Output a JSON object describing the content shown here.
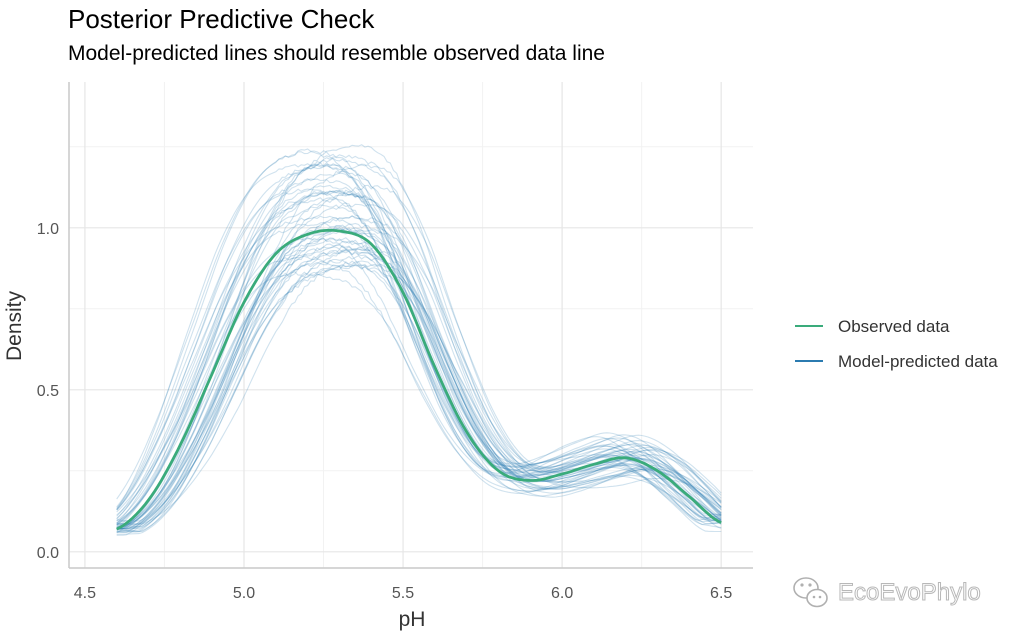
{
  "chart_data": {
    "type": "line",
    "title": "Posterior Predictive Check",
    "subtitle": "Model-predicted lines should resemble observed data line",
    "xlabel": "pH",
    "ylabel": "Density",
    "xlim": [
      4.45,
      6.6
    ],
    "ylim": [
      -0.05,
      1.45
    ],
    "x_ticks": [
      4.5,
      5.0,
      5.5,
      6.0,
      6.5
    ],
    "x_tick_labels": [
      "4.5",
      "5.0",
      "5.5",
      "6.0",
      "6.5"
    ],
    "y_ticks": [
      0.0,
      0.5,
      1.0
    ],
    "y_tick_labels": [
      "0.0",
      "0.5",
      "1.0"
    ],
    "grid": true,
    "legend": {
      "position": "right",
      "entries": [
        {
          "label": "Observed data",
          "color": "#3aab7b"
        },
        {
          "label": "Model-predicted data",
          "color": "#2b7bb0"
        }
      ]
    },
    "observed": {
      "name": "Observed data",
      "x": [
        4.6,
        4.7,
        4.8,
        4.9,
        5.0,
        5.1,
        5.2,
        5.3,
        5.4,
        5.5,
        5.6,
        5.7,
        5.8,
        5.9,
        6.0,
        6.1,
        6.2,
        6.3,
        6.4,
        6.5
      ],
      "y": [
        0.07,
        0.16,
        0.33,
        0.55,
        0.77,
        0.92,
        0.98,
        0.99,
        0.95,
        0.8,
        0.57,
        0.37,
        0.25,
        0.22,
        0.24,
        0.27,
        0.29,
        0.25,
        0.17,
        0.09
      ]
    },
    "predicted": {
      "name": "Model-predicted data",
      "n_draws": 50
    }
  },
  "watermark": {
    "text": "EcoEvoPhylo",
    "icon": "wechat-icon"
  },
  "colors": {
    "observed": "#3aab7b",
    "predicted": "#2b7bb0",
    "grid": "#ebebeb"
  }
}
